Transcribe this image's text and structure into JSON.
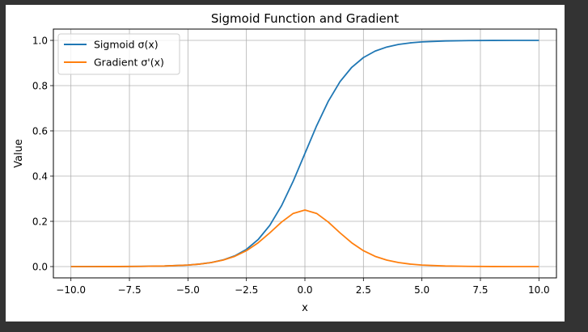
{
  "chart_data": {
    "type": "line",
    "title": "Sigmoid Function and Gradient",
    "xlabel": "x",
    "ylabel": "Value",
    "xlim": [
      -10.75,
      10.75
    ],
    "ylim": [
      -0.05,
      1.05
    ],
    "xticks": [
      -10.0,
      -7.5,
      -5.0,
      -2.5,
      0.0,
      2.5,
      5.0,
      7.5,
      10.0
    ],
    "xtick_labels": [
      "−10.0",
      "−7.5",
      "−5.0",
      "−2.5",
      "0.0",
      "2.5",
      "5.0",
      "7.5",
      "10.0"
    ],
    "yticks": [
      0.0,
      0.2,
      0.4,
      0.6,
      0.8,
      1.0
    ],
    "ytick_labels": [
      "0.0",
      "0.2",
      "0.4",
      "0.6",
      "0.8",
      "1.0"
    ],
    "grid": true,
    "legend_position": "top-left",
    "series": [
      {
        "name": "Sigmoid σ(x)",
        "color": "#1f77b4",
        "x": [
          -10,
          -9,
          -8,
          -7,
          -6,
          -5,
          -4.5,
          -4,
          -3.5,
          -3,
          -2.5,
          -2,
          -1.5,
          -1,
          -0.5,
          0,
          0.5,
          1,
          1.5,
          2,
          2.5,
          3,
          3.5,
          4,
          4.5,
          5,
          6,
          7,
          8,
          9,
          10
        ],
        "y": [
          0.0,
          0.0001,
          0.0003,
          0.0009,
          0.0025,
          0.0067,
          0.011,
          0.018,
          0.0293,
          0.0474,
          0.0759,
          0.1192,
          0.1824,
          0.2689,
          0.3775,
          0.5,
          0.6225,
          0.7311,
          0.8176,
          0.8808,
          0.9241,
          0.9526,
          0.9707,
          0.982,
          0.989,
          0.9933,
          0.9975,
          0.9991,
          0.9997,
          0.9999,
          1.0
        ]
      },
      {
        "name": "Gradient σ'(x)",
        "color": "#ff7f0e",
        "x": [
          -10,
          -9,
          -8,
          -7,
          -6,
          -5,
          -4.5,
          -4,
          -3.5,
          -3,
          -2.5,
          -2,
          -1.5,
          -1,
          -0.5,
          0,
          0.5,
          1,
          1.5,
          2,
          2.5,
          3,
          3.5,
          4,
          4.5,
          5,
          6,
          7,
          8,
          9,
          10
        ],
        "y": [
          0.0,
          0.0001,
          0.0003,
          0.0009,
          0.0025,
          0.0066,
          0.0109,
          0.0177,
          0.0285,
          0.0452,
          0.0701,
          0.105,
          0.1491,
          0.1966,
          0.235,
          0.25,
          0.235,
          0.1966,
          0.1491,
          0.105,
          0.0701,
          0.0452,
          0.0285,
          0.0177,
          0.0109,
          0.0066,
          0.0025,
          0.0009,
          0.0003,
          0.0001,
          0.0
        ]
      }
    ]
  }
}
